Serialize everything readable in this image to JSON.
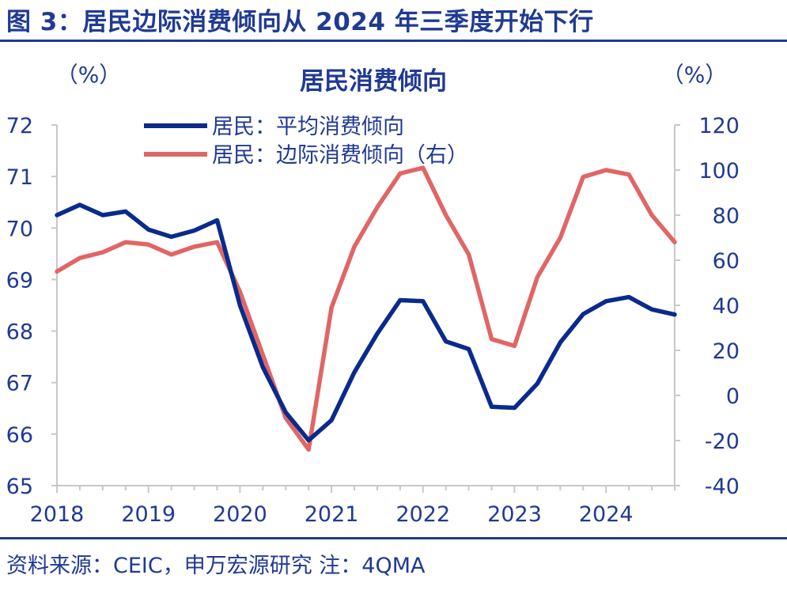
{
  "figure": {
    "title": "图 3：居民边际消费倾向从 2024 年三季度开始下行",
    "source": "资料来源：CEIC，申万宏源研究  注：4QMA"
  },
  "colors": {
    "accent": "#1f3a93",
    "series_avg": "#0a2a8c",
    "series_marginal": "#e06666"
  },
  "chart_data": {
    "type": "line",
    "title": "居民消费倾向",
    "left_unit": "（%）",
    "right_unit": "（%）",
    "x_ticks": [
      "2018",
      "2019",
      "2020",
      "2021",
      "2022",
      "2023",
      "2024"
    ],
    "x_range": [
      2018.0,
      2024.75
    ],
    "y_left": {
      "range": [
        65,
        72
      ],
      "ticks": [
        "65",
        "66",
        "67",
        "68",
        "69",
        "70",
        "71",
        "72"
      ]
    },
    "y_right": {
      "range": [
        -40,
        120
      ],
      "ticks": [
        "-40",
        "-20",
        "0",
        "20",
        "40",
        "60",
        "80",
        "100",
        "120"
      ]
    },
    "legend_position": "top-center",
    "series": [
      {
        "name": "居民：平均消费倾向",
        "axis": "left",
        "x": [
          2018.0,
          2018.25,
          2018.5,
          2018.75,
          2019.0,
          2019.25,
          2019.5,
          2019.75,
          2020.0,
          2020.25,
          2020.5,
          2020.75,
          2021.0,
          2021.25,
          2021.5,
          2021.75,
          2022.0,
          2022.25,
          2022.5,
          2022.75,
          2023.0,
          2023.25,
          2023.5,
          2023.75,
          2024.0,
          2024.25,
          2024.5,
          2024.75
        ],
        "values": [
          70.25,
          70.45,
          70.25,
          70.32,
          69.97,
          69.83,
          69.95,
          70.15,
          68.5,
          67.3,
          66.42,
          65.88,
          66.27,
          67.2,
          67.95,
          68.6,
          68.58,
          67.8,
          67.65,
          66.53,
          66.51,
          66.98,
          67.78,
          68.33,
          68.58,
          68.66,
          68.42,
          68.32
        ]
      },
      {
        "name": "居民：边际消费倾向（右）",
        "axis": "right",
        "x": [
          2018.0,
          2018.25,
          2018.5,
          2018.75,
          2019.0,
          2019.25,
          2019.5,
          2019.75,
          2020.0,
          2020.25,
          2020.5,
          2020.75,
          2021.0,
          2021.25,
          2021.5,
          2021.75,
          2022.0,
          2022.25,
          2022.5,
          2022.75,
          2023.0,
          2023.25,
          2023.5,
          2023.75,
          2024.0,
          2024.25,
          2024.5,
          2024.75
        ],
        "values": [
          55,
          61,
          63.5,
          68,
          67,
          62.5,
          66,
          68,
          46,
          18,
          -10,
          -24,
          39,
          66,
          83.5,
          98.5,
          101,
          80,
          62.5,
          25,
          22,
          52.5,
          70,
          97,
          100,
          98,
          80,
          68
        ]
      }
    ]
  }
}
